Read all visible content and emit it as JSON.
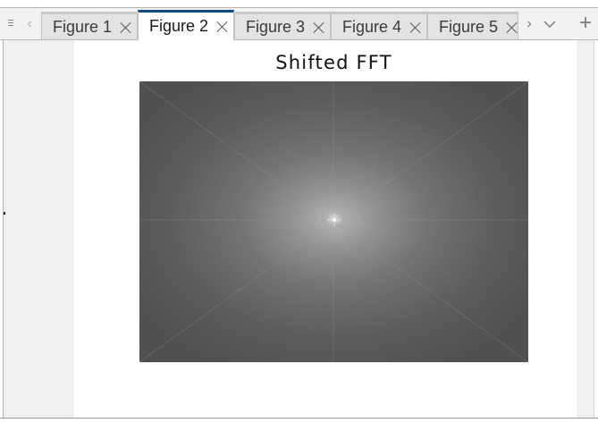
{
  "toolbar": {
    "menu_icon": "menu-icon",
    "scroll_left_icon": "chevron-left-icon",
    "scroll_right_icon": "chevron-right-icon",
    "list_tabs_icon": "chevron-down-icon",
    "add_tab_icon": "plus-icon"
  },
  "tabs": [
    {
      "label": "Figure 1",
      "active": false
    },
    {
      "label": "Figure 2",
      "active": true
    },
    {
      "label": "Figure 3",
      "active": false
    },
    {
      "label": "Figure 4",
      "active": false
    },
    {
      "label": "Figure 5",
      "active": false
    }
  ],
  "figure": {
    "title": "Shifted FFT",
    "image": "log-magnitude spectrum, bright centre fading to dark grey"
  },
  "colors": {
    "active_tab_accent": "#0f4a89",
    "tab_inactive_bg": "#e3e3e3",
    "tab_active_bg": "#ffffff",
    "canvas_bg": "#f0f0f0",
    "spectrum_dark": "#555555",
    "spectrum_bright": "#e8e8e8"
  }
}
